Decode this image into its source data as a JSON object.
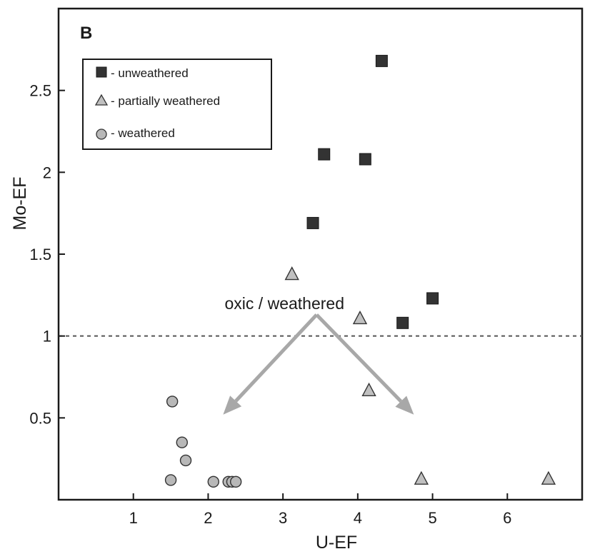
{
  "chart_data": {
    "type": "scatter",
    "panel_label": "B",
    "xlabel": "U-EF",
    "ylabel": "Mo-EF",
    "xlim": [
      0,
      7
    ],
    "ylim": [
      0,
      3
    ],
    "xticks": [
      1,
      2,
      3,
      4,
      5,
      6
    ],
    "yticks": [
      0.5,
      1,
      1.5,
      2,
      2.5
    ],
    "grid": false,
    "legend_position": "top-left",
    "series": [
      {
        "name": "- unweathered",
        "marker": "square",
        "color": "#333333",
        "points": [
          [
            4.32,
            2.68
          ],
          [
            3.55,
            2.11
          ],
          [
            4.1,
            2.08
          ],
          [
            3.4,
            1.69
          ],
          [
            5.0,
            1.23
          ],
          [
            4.6,
            1.08
          ]
        ]
      },
      {
        "name": "- partially weathered",
        "marker": "triangle",
        "color": "#c0c0c0",
        "points": [
          [
            3.12,
            1.38
          ],
          [
            4.03,
            1.11
          ],
          [
            4.15,
            0.67
          ],
          [
            4.85,
            0.13
          ],
          [
            6.55,
            0.13
          ]
        ]
      },
      {
        "name": "- weathered",
        "marker": "circle",
        "color": "#b8b8b8",
        "points": [
          [
            1.52,
            0.6
          ],
          [
            1.65,
            0.35
          ],
          [
            1.7,
            0.24
          ],
          [
            1.5,
            0.12
          ],
          [
            2.07,
            0.11
          ],
          [
            2.27,
            0.11
          ],
          [
            2.32,
            0.11
          ],
          [
            2.37,
            0.11
          ]
        ]
      }
    ],
    "reference_line": {
      "y": 1.0,
      "style": "dashed",
      "color": "#555555"
    },
    "annotation": {
      "text": "oxic / weathered",
      "origin": [
        3.45,
        1.13
      ],
      "arrows_to": [
        [
          2.2,
          0.52
        ],
        [
          4.75,
          0.52
        ]
      ],
      "color": "#a8a8a8"
    }
  }
}
